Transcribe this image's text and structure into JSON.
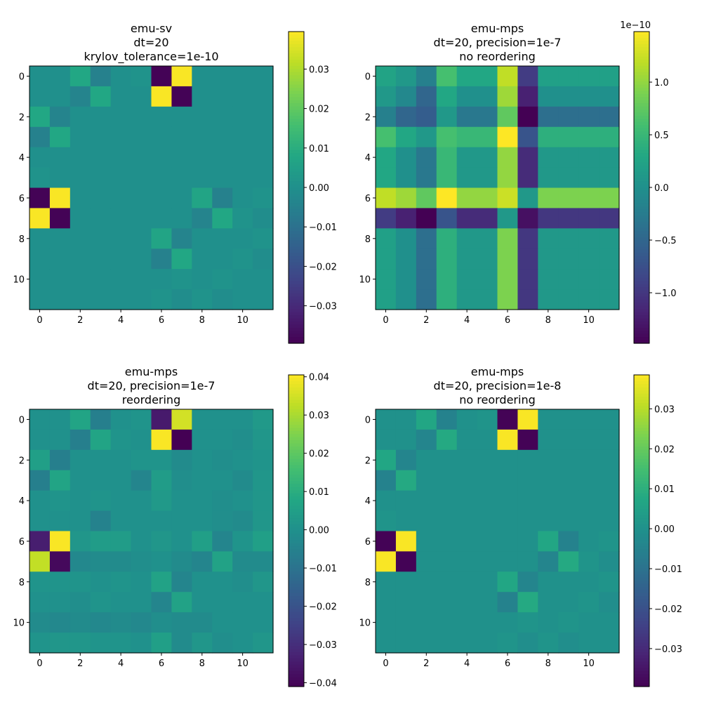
{
  "figure": {
    "background": "#ffffff",
    "colormap": "viridis"
  },
  "chart_data": [
    {
      "type": "heatmap",
      "title": [
        "emu-sv",
        "dt=20",
        "krylov_tolerance=1e-10"
      ],
      "x_ticks": [
        0,
        2,
        4,
        6,
        8,
        10
      ],
      "y_ticks": [
        0,
        2,
        4,
        6,
        8,
        10
      ],
      "xlim": [
        -0.5,
        11.5
      ],
      "ylim": [
        11.5,
        -0.5
      ],
      "colorbar": {
        "min": -0.0395,
        "max": 0.0395,
        "ticks": [
          -0.03,
          -0.02,
          -0.01,
          0.0,
          0.01,
          0.02,
          0.03
        ],
        "tick_labels": [
          "−0.03",
          "−0.02",
          "−0.01",
          "0.00",
          "0.01",
          "0.02",
          "0.03"
        ],
        "offset_text": ""
      },
      "values": [
        [
          0.0,
          0.0,
          0.008,
          -0.005,
          0.0,
          0.001,
          -0.039,
          0.039,
          0.0,
          0.0,
          0.0,
          0.0
        ],
        [
          0.0,
          0.0,
          -0.004,
          0.008,
          0.0,
          0.0,
          0.039,
          -0.039,
          0.0,
          0.0,
          0.0,
          0.0
        ],
        [
          0.008,
          -0.004,
          0.0,
          0.0,
          0.0,
          0.0,
          0.0,
          0.0,
          0.0,
          0.0,
          0.0,
          0.0
        ],
        [
          -0.005,
          0.008,
          0.0,
          0.0,
          0.0,
          0.0,
          0.0,
          0.0,
          0.0,
          0.0,
          0.0,
          0.0
        ],
        [
          0.0,
          0.0,
          0.0,
          0.0,
          0.0,
          0.0,
          0.0,
          0.0,
          0.0,
          0.0,
          0.0,
          0.0
        ],
        [
          0.001,
          0.0,
          0.0,
          0.0,
          0.0,
          0.0,
          0.0,
          0.0,
          0.0,
          0.0,
          0.0,
          0.0
        ],
        [
          -0.039,
          0.039,
          0.0,
          0.0,
          0.0,
          0.0,
          0.0,
          0.0,
          0.007,
          -0.005,
          0.0,
          0.001
        ],
        [
          0.039,
          -0.039,
          0.0,
          0.0,
          0.0,
          0.0,
          0.0,
          0.0,
          -0.004,
          0.008,
          0.001,
          -0.001
        ],
        [
          0.0,
          0.0,
          0.0,
          0.0,
          0.0,
          0.0,
          0.007,
          -0.004,
          0.0,
          0.0,
          0.0,
          0.001
        ],
        [
          0.0,
          0.0,
          0.0,
          0.0,
          0.0,
          0.0,
          -0.005,
          0.008,
          0.0,
          0.0,
          0.001,
          -0.001
        ],
        [
          0.0,
          0.0,
          0.0,
          0.0,
          0.0,
          0.0,
          0.0,
          0.001,
          0.0,
          0.001,
          0.0,
          0.0
        ],
        [
          0.0,
          0.0,
          0.0,
          0.0,
          0.0,
          0.0,
          0.001,
          -0.001,
          0.001,
          -0.001,
          0.0,
          0.0
        ]
      ]
    },
    {
      "type": "heatmap",
      "title": [
        "emu-mps",
        "dt=20, precision=1e-7",
        "no reordering"
      ],
      "x_ticks": [
        0,
        2,
        4,
        6,
        8,
        10
      ],
      "y_ticks": [
        0,
        2,
        4,
        6,
        8,
        10
      ],
      "xlim": [
        -0.5,
        11.5
      ],
      "ylim": [
        11.5,
        -0.5
      ],
      "colorbar": {
        "min": -1.48,
        "max": 1.48,
        "ticks": [
          -1.0,
          -0.5,
          0.0,
          0.5,
          1.0
        ],
        "tick_labels": [
          "−1.0",
          "−0.5",
          "0.0",
          "0.5",
          "1.0"
        ],
        "offset_text": "1e−10"
      },
      "values": [
        [
          0.25,
          0.1,
          -0.2,
          0.6,
          0.3,
          0.3,
          1.2,
          -0.95,
          0.2,
          0.2,
          0.2,
          0.2
        ],
        [
          0.1,
          -0.1,
          -0.5,
          0.3,
          0.0,
          0.0,
          1.05,
          -1.2,
          0.0,
          0.0,
          0.0,
          0.0
        ],
        [
          -0.2,
          -0.5,
          -0.6,
          0.1,
          -0.3,
          -0.3,
          0.75,
          -1.48,
          -0.4,
          -0.4,
          -0.4,
          -0.4
        ],
        [
          0.6,
          0.3,
          0.1,
          0.6,
          0.5,
          0.5,
          1.48,
          -0.7,
          0.4,
          0.4,
          0.4,
          0.4
        ],
        [
          0.3,
          0.0,
          -0.3,
          0.5,
          0.1,
          0.1,
          1.0,
          -1.1,
          0.1,
          0.1,
          0.1,
          0.1
        ],
        [
          0.3,
          0.0,
          -0.3,
          0.5,
          0.1,
          0.1,
          1.0,
          -1.1,
          0.1,
          0.1,
          0.1,
          0.1
        ],
        [
          1.2,
          1.05,
          0.75,
          1.48,
          1.0,
          1.0,
          1.25,
          0.1,
          0.9,
          0.9,
          0.9,
          0.9
        ],
        [
          -0.95,
          -1.2,
          -1.48,
          -0.7,
          -1.1,
          -1.1,
          0.1,
          -1.35,
          -1.0,
          -1.0,
          -1.0,
          -1.0
        ],
        [
          0.2,
          0.0,
          -0.4,
          0.4,
          0.1,
          0.1,
          0.9,
          -1.0,
          0.1,
          0.1,
          0.1,
          0.1
        ],
        [
          0.2,
          0.0,
          -0.4,
          0.4,
          0.1,
          0.1,
          0.9,
          -1.0,
          0.1,
          0.1,
          0.1,
          0.1
        ],
        [
          0.2,
          0.0,
          -0.4,
          0.4,
          0.1,
          0.1,
          0.9,
          -1.0,
          0.1,
          0.1,
          0.1,
          0.1
        ],
        [
          0.2,
          0.0,
          -0.4,
          0.4,
          0.1,
          0.1,
          0.9,
          -1.0,
          0.1,
          0.1,
          0.1,
          0.1
        ]
      ]
    },
    {
      "type": "heatmap",
      "title": [
        "emu-mps",
        "dt=20, precision=1e-7",
        "reordering"
      ],
      "x_ticks": [
        0,
        2,
        4,
        6,
        8,
        10
      ],
      "y_ticks": [
        0,
        2,
        4,
        6,
        8,
        10
      ],
      "xlim": [
        -0.5,
        11.5
      ],
      "ylim": [
        11.5,
        -0.5
      ],
      "colorbar": {
        "min": -0.041,
        "max": 0.0405,
        "ticks": [
          -0.04,
          -0.03,
          -0.02,
          -0.01,
          0.0,
          0.01,
          0.02,
          0.03,
          0.04
        ],
        "tick_labels": [
          "−0.04",
          "−0.03",
          "−0.02",
          "−0.01",
          "0.00",
          "0.01",
          "0.02",
          "0.03",
          "0.04"
        ],
        "offset_text": ""
      },
      "values": [
        [
          0.0,
          0.0,
          0.007,
          -0.006,
          0.0,
          0.001,
          -0.035,
          0.035,
          0.0,
          0.0,
          0.0,
          0.003
        ],
        [
          0.0,
          0.0,
          -0.006,
          0.007,
          0.001,
          0.0,
          0.04,
          -0.041,
          0.0,
          0.0,
          -0.001,
          0.002
        ],
        [
          0.005,
          -0.006,
          0.0,
          0.0,
          0.0,
          0.001,
          0.001,
          -0.002,
          0.0,
          -0.001,
          0.0,
          0.001
        ],
        [
          -0.006,
          0.007,
          0.0,
          0.0,
          0.0,
          -0.004,
          0.004,
          -0.001,
          0.0,
          0.0,
          -0.002,
          0.002
        ],
        [
          0.0,
          0.001,
          0.0,
          0.001,
          0.0,
          0.0,
          0.003,
          0.0,
          0.0,
          -0.001,
          0.0,
          0.002
        ],
        [
          0.0,
          0.0,
          0.0,
          -0.005,
          0.0,
          0.0,
          0.0,
          0.0,
          0.0,
          -0.001,
          -0.002,
          0.002
        ],
        [
          -0.034,
          0.04,
          0.002,
          0.004,
          0.004,
          0.0,
          0.002,
          0.0,
          0.005,
          -0.004,
          0.001,
          0.005
        ],
        [
          0.033,
          -0.039,
          -0.003,
          -0.002,
          -0.002,
          -0.001,
          0.0,
          -0.002,
          -0.004,
          0.006,
          -0.002,
          -0.002
        ],
        [
          0.001,
          0.001,
          0.001,
          0.0,
          0.001,
          0.0,
          0.006,
          -0.004,
          0.0,
          0.0,
          -0.001,
          0.002
        ],
        [
          0.0,
          0.0,
          -0.001,
          0.001,
          0.0,
          0.0,
          -0.004,
          0.006,
          0.0,
          0.0,
          0.0,
          0.0
        ],
        [
          -0.002,
          -0.003,
          -0.002,
          -0.003,
          -0.002,
          -0.003,
          -0.001,
          -0.002,
          -0.002,
          0.0,
          0.0,
          0.0
        ],
        [
          0.001,
          0.002,
          0.002,
          0.001,
          0.001,
          0.0,
          0.005,
          -0.002,
          0.002,
          -0.001,
          0.0,
          0.002
        ]
      ]
    },
    {
      "type": "heatmap",
      "title": [
        "emu-mps",
        "dt=20, precision=1e-8",
        "no reordering"
      ],
      "x_ticks": [
        0,
        2,
        4,
        6,
        8,
        10
      ],
      "y_ticks": [
        0,
        2,
        4,
        6,
        8,
        10
      ],
      "xlim": [
        -0.5,
        11.5
      ],
      "ylim": [
        11.5,
        -0.5
      ],
      "colorbar": {
        "min": -0.0395,
        "max": 0.0385,
        "ticks": [
          -0.03,
          -0.02,
          -0.01,
          0.0,
          0.01,
          0.02,
          0.03
        ],
        "tick_labels": [
          "−0.03",
          "−0.02",
          "−0.01",
          "0.00",
          "0.01",
          "0.02",
          "0.03"
        ],
        "offset_text": ""
      },
      "values": [
        [
          0.0,
          0.0,
          0.007,
          -0.005,
          0.0,
          0.001,
          -0.039,
          0.038,
          0.0,
          0.0,
          0.0,
          0.0
        ],
        [
          0.0,
          0.0,
          -0.004,
          0.008,
          0.0,
          0.0,
          0.038,
          -0.039,
          0.0,
          0.0,
          0.0,
          0.0
        ],
        [
          0.007,
          -0.004,
          0.0,
          0.0,
          0.0,
          0.0,
          0.0,
          0.0,
          0.0,
          0.0,
          0.0,
          0.0
        ],
        [
          -0.005,
          0.008,
          0.0,
          0.0,
          0.0,
          0.0,
          0.0,
          0.0,
          0.0,
          0.0,
          0.0,
          0.0
        ],
        [
          0.0,
          0.0,
          0.0,
          0.0,
          0.0,
          0.0,
          0.0,
          0.0,
          0.0,
          0.0,
          0.0,
          0.0
        ],
        [
          0.001,
          0.0,
          0.0,
          0.0,
          0.0,
          0.0,
          0.0,
          0.0,
          0.0,
          0.0,
          0.0,
          0.0
        ],
        [
          -0.039,
          0.038,
          0.0,
          0.0,
          0.0,
          0.0,
          0.0,
          0.0,
          0.007,
          -0.005,
          0.0,
          0.001
        ],
        [
          0.038,
          -0.039,
          0.0,
          0.0,
          0.0,
          0.0,
          0.0,
          0.0,
          -0.004,
          0.008,
          0.001,
          -0.001
        ],
        [
          0.0,
          0.0,
          0.0,
          0.0,
          0.0,
          0.0,
          0.007,
          -0.004,
          0.0,
          0.0,
          0.0,
          0.001
        ],
        [
          0.0,
          0.0,
          0.0,
          0.0,
          0.0,
          0.0,
          -0.005,
          0.008,
          0.0,
          0.0,
          0.001,
          -0.001
        ],
        [
          0.0,
          0.0,
          0.0,
          0.0,
          0.0,
          0.0,
          0.0,
          0.001,
          0.0,
          0.001,
          0.0,
          0.0
        ],
        [
          0.0,
          0.0,
          0.0,
          0.0,
          0.0,
          0.0,
          0.001,
          -0.001,
          0.001,
          -0.001,
          0.0,
          0.0
        ]
      ]
    }
  ]
}
